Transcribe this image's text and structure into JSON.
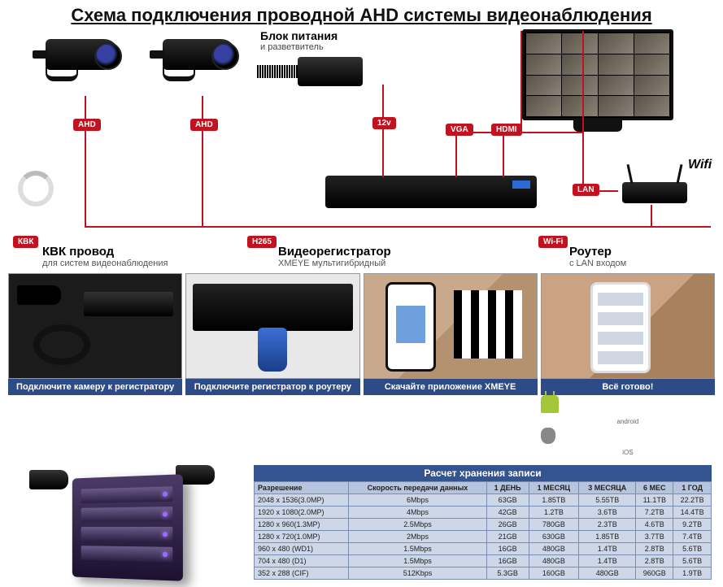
{
  "title": "Схема подключения проводной AHD системы видеонаблюдения",
  "psu": {
    "title": "Блок питания",
    "sub": "и разветвитель"
  },
  "badges": {
    "ahd": "AHD",
    "v12": "12v",
    "vga": "VGA",
    "hdmi": "HDMI",
    "lan": "LAN",
    "kvk": "КВК",
    "h265": "H265",
    "wifi": "Wi-Fi"
  },
  "wifi_text": "Wifi",
  "labels": {
    "kvk": {
      "title": "КВК провод",
      "sub": "для систем видеонаблюдения"
    },
    "dvr": {
      "title": "Видеорегистратор",
      "sub": "XMEYE мультигибридный"
    },
    "router": {
      "title": "Роутер",
      "sub": "с LAN входом"
    }
  },
  "steps": {
    "s1": "Подключите камеру к регистратору",
    "s2": "Подключите регистратор к роутеру",
    "s3": "Скачайте приложение XMEYE",
    "s4": "Всё готово!",
    "android": "android",
    "ios": "iOS"
  },
  "table": {
    "title": "Расчет хранения записи",
    "headers": [
      "Разрешение",
      "Скорость передачи данных",
      "1 ДЕНЬ",
      "1 МЕСЯЦ",
      "3 МЕСЯЦА",
      "6 МЕС",
      "1 ГОД"
    ],
    "rows": [
      [
        "2048 x 1536(3.0MP)",
        "6Mbps",
        "63GB",
        "1.85TB",
        "5.55TB",
        "11.1TB",
        "22.2TB"
      ],
      [
        "1920 x 1080(2.0MP)",
        "4Mbps",
        "42GB",
        "1.2TB",
        "3.6TB",
        "7.2TB",
        "14.4TB"
      ],
      [
        "1280 x 960(1.3MP)",
        "2.5Mbps",
        "26GB",
        "780GB",
        "2.3TB",
        "4.6TB",
        "9.2TB"
      ],
      [
        "1280 x 720(1.0MP)",
        "2Mbps",
        "21GB",
        "630GB",
        "1.85TB",
        "3.7TB",
        "7.4TB"
      ],
      [
        "960 x 480 (WD1)",
        "1.5Mbps",
        "16GB",
        "480GB",
        "1.4TB",
        "2.8TB",
        "5.6TB"
      ],
      [
        "704 x 480 (D1)",
        "1.5Mbps",
        "16GB",
        "480GB",
        "1.4TB",
        "2.8TB",
        "5.6TB"
      ],
      [
        "352 x 288 (CIF)",
        "512Kbps",
        "5.3GB",
        "160GB",
        "480GB",
        "960GB",
        "1.9TB"
      ]
    ]
  },
  "colors": {
    "red": "#c1121f",
    "step_caption": "#2d4b86",
    "table_header": "#33548f"
  }
}
